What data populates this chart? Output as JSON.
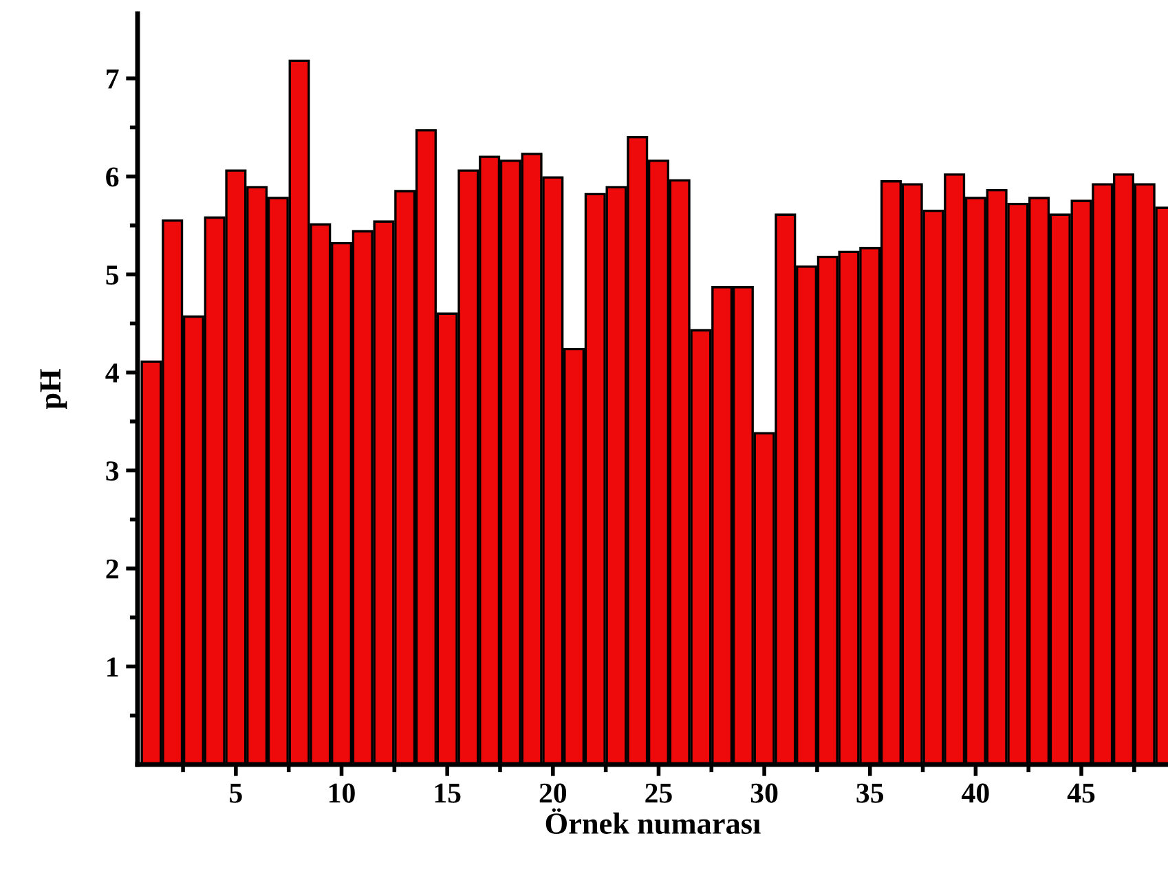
{
  "chart_data": {
    "type": "bar",
    "xlabel": "Örnek numarası",
    "ylabel": "pH",
    "x": [
      1,
      2,
      3,
      4,
      5,
      6,
      7,
      8,
      9,
      10,
      11,
      12,
      13,
      14,
      15,
      16,
      17,
      18,
      19,
      20,
      21,
      22,
      23,
      24,
      25,
      26,
      27,
      28,
      29,
      30,
      31,
      32,
      33,
      34,
      35,
      36,
      37,
      38,
      39,
      40,
      41,
      42,
      43,
      44,
      45,
      46,
      47,
      48,
      49
    ],
    "values": [
      4.11,
      5.55,
      4.57,
      5.58,
      6.06,
      5.89,
      5.78,
      7.18,
      5.51,
      5.32,
      5.44,
      5.54,
      5.85,
      6.47,
      4.6,
      6.06,
      6.2,
      6.16,
      6.23,
      5.99,
      4.24,
      5.82,
      5.89,
      6.4,
      6.16,
      5.96,
      4.43,
      4.87,
      4.87,
      3.38,
      5.61,
      5.08,
      5.18,
      5.23,
      5.27,
      5.95,
      5.92,
      5.65,
      6.02,
      5.78,
      5.86,
      5.72,
      5.78,
      5.61,
      5.75,
      5.92,
      6.02,
      5.92,
      5.68
    ],
    "color": "#ee0a0a",
    "xlim": [
      0.35,
      49.1
    ],
    "ylim": [
      0,
      7.66
    ],
    "xticks": [
      {
        "value": 2.5,
        "label": null
      },
      5,
      {
        "value": 7.5,
        "label": null
      },
      10,
      {
        "value": 12.5,
        "label": null
      },
      15,
      {
        "value": 17.5,
        "label": null
      },
      20,
      {
        "value": 22.5,
        "label": null
      },
      25,
      {
        "value": 27.5,
        "label": null
      },
      30,
      {
        "value": 32.5,
        "label": null
      },
      35,
      {
        "value": 37.5,
        "label": null
      },
      40,
      {
        "value": 42.5,
        "label": null
      },
      45,
      {
        "value": 47.5,
        "label": null
      }
    ],
    "yticks": [
      {
        "value": 0.5,
        "label": null
      },
      1,
      {
        "value": 1.5,
        "label": null
      },
      2,
      {
        "value": 2.5,
        "label": null
      },
      3,
      {
        "value": 3.5,
        "label": null
      },
      4,
      {
        "value": 4.5,
        "label": null
      },
      5,
      {
        "value": 5.5,
        "label": null
      },
      6,
      {
        "value": 6.5,
        "label": null
      },
      7
    ],
    "grid": false,
    "legend": false
  }
}
